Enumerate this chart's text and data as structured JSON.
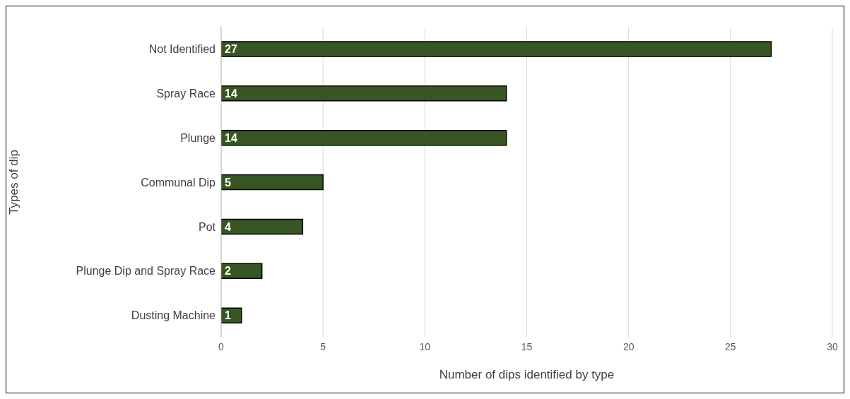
{
  "chart_data": {
    "type": "bar",
    "orientation": "horizontal",
    "categories": [
      "Not Identified",
      "Spray Race",
      "Plunge",
      "Communal Dip",
      "Pot",
      "Plunge Dip and Spray Race",
      "Dusting Machine"
    ],
    "values": [
      27,
      14,
      14,
      5,
      4,
      2,
      1
    ],
    "color": "#375623",
    "xlabel": "Number of dips identified by type",
    "ylabel": "Types of dip",
    "xlim": [
      0,
      30
    ],
    "xticks": [
      0,
      5,
      10,
      15,
      20,
      25,
      30
    ],
    "grid": "x",
    "data_labels": true
  }
}
